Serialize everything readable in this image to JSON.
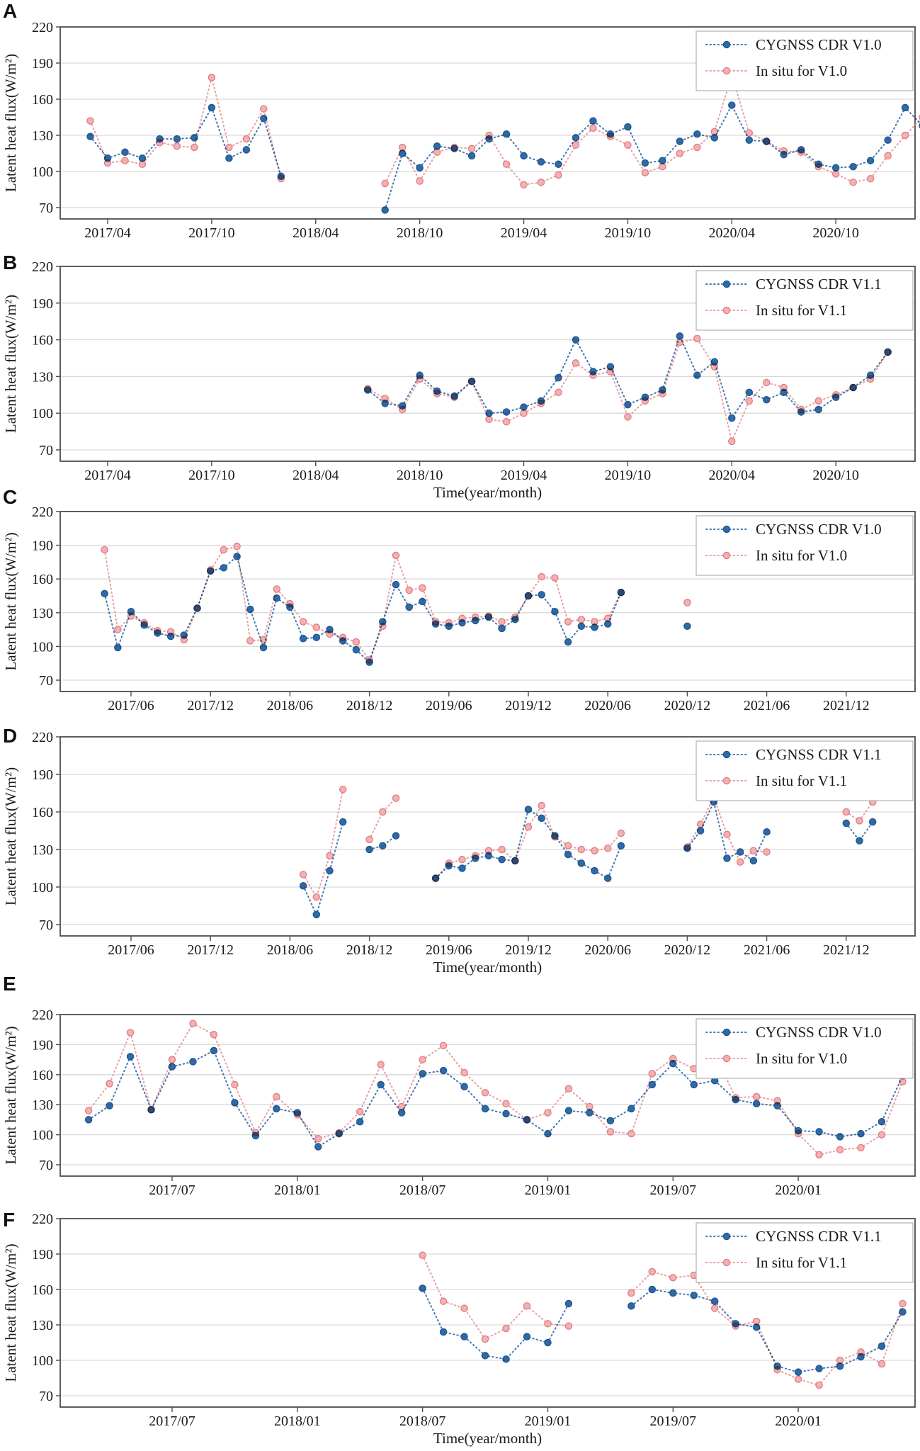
{
  "figure": {
    "ylabel": "Latent heat flux(W/m²)",
    "xlabel": "Time(year/month)",
    "colors": {
      "cygnss_marker": "#2d6aa8",
      "cygnss_edge": "#235689",
      "cygnss_line": "#4479b4",
      "insitu_marker": "#f4b0b2",
      "insitu_edge": "#e07d80",
      "insitu_line": "#ea9fa1",
      "grid": "#d9d9d9",
      "axis": "#4d4d4d"
    }
  },
  "chart_data": [
    {
      "panel": "A",
      "type": "line",
      "ylabel": "Latent heat flux(W/m²)",
      "xlabel": "",
      "ylim": [
        61,
        220
      ],
      "yticks": [
        220,
        190,
        160,
        130,
        100,
        70
      ],
      "xticks": [
        "2017/04",
        "2017/10",
        "2018/04",
        "2018/10",
        "2019/04",
        "2019/10",
        "2020/04",
        "2020/10"
      ],
      "legend_entries": [
        "CYGNSS CDR V1.0",
        "In situ for V1.0"
      ],
      "series": [
        {
          "name": "In situ for V1.0",
          "role": "insitu",
          "segments": [
            {
              "start": "2017/03",
              "values": [
                142,
                107,
                109,
                106,
                124,
                121,
                120,
                178,
                120,
                127,
                152,
                94
              ]
            },
            {
              "start": "2018/08",
              "values": [
                90,
                120,
                92,
                116,
                120,
                119,
                130,
                106,
                89,
                91,
                97,
                122,
                136,
                129,
                122,
                99,
                104,
                115,
                120,
                133,
                180,
                132,
                125,
                117,
                116,
                104,
                98,
                91,
                94,
                113,
                130,
                145
              ]
            }
          ]
        },
        {
          "name": "CYGNSS CDR V1.0",
          "role": "cygnss",
          "segments": [
            {
              "start": "2017/03",
              "values": [
                129,
                111,
                116,
                111,
                127,
                127,
                128,
                153,
                111,
                118,
                144,
                96
              ]
            },
            {
              "start": "2018/08",
              "values": [
                68,
                115,
                103,
                121,
                119,
                113,
                127,
                131,
                113,
                108,
                106,
                128,
                142,
                131,
                137,
                107,
                109,
                125,
                131,
                128,
                155,
                126,
                125,
                114,
                118,
                106,
                103,
                104,
                109,
                126,
                153,
                138
              ]
            }
          ]
        }
      ]
    },
    {
      "panel": "B",
      "type": "line",
      "ylabel": "Latent heat flux(W/m²)",
      "xlabel": "Time(year/month)",
      "ylim": [
        61,
        220
      ],
      "yticks": [
        220,
        190,
        160,
        130,
        100,
        70
      ],
      "xticks": [
        "2017/04",
        "2017/10",
        "2018/04",
        "2018/10",
        "2019/04",
        "2019/10",
        "2020/04",
        "2020/10"
      ],
      "legend_entries": [
        "CYGNSS CDR V1.1",
        "In situ for V1.1"
      ],
      "series": [
        {
          "name": "In situ for V1.1",
          "role": "insitu",
          "segments": [
            {
              "start": "2018/07",
              "values": [
                120,
                112,
                103,
                128,
                116,
                113,
                126,
                95,
                93,
                100,
                108,
                117,
                141,
                131,
                134,
                97,
                110,
                116,
                158,
                161,
                138,
                77,
                110,
                125,
                121,
                103,
                110,
                115,
                121,
                128,
                150
              ]
            }
          ]
        },
        {
          "name": "CYGNSS CDR V1.1",
          "role": "cygnss",
          "segments": [
            {
              "start": "2018/07",
              "values": [
                119,
                108,
                106,
                131,
                118,
                114,
                126,
                100,
                101,
                105,
                110,
                129,
                160,
                134,
                138,
                107,
                113,
                119,
                163,
                131,
                142,
                96,
                117,
                111,
                117,
                101,
                103,
                113,
                121,
                131,
                150
              ]
            }
          ]
        }
      ]
    },
    {
      "panel": "C",
      "type": "line",
      "ylabel": "Latent heat flux(W/m²)",
      "xlabel": "",
      "ylim": [
        61,
        220
      ],
      "yticks": [
        220,
        190,
        160,
        130,
        100,
        70
      ],
      "xticks": [
        "2017/06",
        "2017/12",
        "2018/06",
        "2018/12",
        "2019/06",
        "2019/12",
        "2020/06",
        "2020/12",
        "2021/06",
        "2021/12"
      ],
      "legend_entries": [
        "CYGNSS CDR V1.0",
        "In situ for V1.0"
      ],
      "series": [
        {
          "name": "In situ for V1.0",
          "role": "insitu",
          "segments": [
            {
              "start": "2017/04",
              "values": [
                186,
                115,
                127,
                121,
                114,
                113,
                106,
                134,
                168,
                186,
                189,
                105,
                106,
                151,
                138,
                122,
                117,
                111,
                108,
                104,
                88,
                118,
                181,
                150,
                152,
                122,
                121,
                125,
                126,
                127,
                122,
                126,
                145,
                162,
                161,
                122,
                124,
                122,
                125,
                148
              ]
            },
            {
              "start": "2020/12",
              "values": [
                139
              ]
            }
          ]
        },
        {
          "name": "CYGNSS CDR V1.0",
          "role": "cygnss",
          "segments": [
            {
              "start": "2017/04",
              "values": [
                147,
                99,
                131,
                119,
                112,
                109,
                110,
                134,
                167,
                170,
                180,
                133,
                99,
                143,
                135,
                107,
                108,
                115,
                105,
                97,
                86,
                122,
                155,
                135,
                140,
                120,
                118,
                121,
                123,
                126,
                116,
                124,
                145,
                146,
                131,
                104,
                118,
                117,
                120,
                148
              ]
            },
            {
              "start": "2020/12",
              "values": [
                118
              ]
            }
          ]
        }
      ]
    },
    {
      "panel": "D",
      "type": "line",
      "ylabel": "Latent heat flux(W/m²)",
      "xlabel": "Time(year/month)",
      "ylim": [
        61,
        220
      ],
      "yticks": [
        220,
        190,
        160,
        130,
        100,
        70
      ],
      "xticks": [
        "2017/06",
        "2017/12",
        "2018/06",
        "2018/12",
        "2019/06",
        "2019/12",
        "2020/06",
        "2020/12",
        "2021/06",
        "2021/12"
      ],
      "legend_entries": [
        "CYGNSS CDR V1.1",
        "In situ for V1.1"
      ],
      "series": [
        {
          "name": "In situ for V1.1",
          "role": "insitu",
          "segments": [
            {
              "start": "2018/07",
              "values": [
                110,
                92,
                125,
                178
              ]
            },
            {
              "start": "2018/12",
              "values": [
                138,
                160,
                171
              ]
            },
            {
              "start": "2019/05",
              "values": [
                107,
                119,
                122,
                125,
                129,
                130,
                121,
                148,
                165,
                140,
                133,
                130,
                129,
                131,
                143
              ]
            },
            {
              "start": "2020/12",
              "values": [
                132,
                150,
                172,
                142,
                120,
                129,
                128
              ]
            },
            {
              "start": "2021/12",
              "values": [
                160,
                153,
                168
              ]
            }
          ]
        },
        {
          "name": "CYGNSS CDR V1.1",
          "role": "cygnss",
          "segments": [
            {
              "start": "2018/07",
              "values": [
                101,
                78,
                113,
                152
              ]
            },
            {
              "start": "2018/12",
              "values": [
                130,
                133,
                141
              ]
            },
            {
              "start": "2019/05",
              "values": [
                107,
                117,
                115,
                123,
                125,
                122,
                121,
                162,
                155,
                141,
                126,
                119,
                113,
                107,
                133
              ]
            },
            {
              "start": "2020/12",
              "values": [
                131,
                145,
                168,
                123,
                128,
                121,
                144
              ]
            },
            {
              "start": "2021/12",
              "values": [
                151,
                137,
                152
              ]
            }
          ]
        }
      ]
    },
    {
      "panel": "E",
      "type": "line",
      "ylabel": "Latent heat flux(W/m²)",
      "xlabel": "",
      "ylim": [
        61,
        220
      ],
      "yticks": [
        220,
        190,
        160,
        130,
        100,
        70
      ],
      "xticks": [
        "2017/07",
        "2018/01",
        "2018/07",
        "2019/01",
        "2019/07",
        "2020/01"
      ],
      "legend_entries": [
        "CYGNSS CDR V1.0",
        "In situ for V1.0"
      ],
      "series": [
        {
          "name": "In situ for V1.0",
          "role": "insitu",
          "segments": [
            {
              "start": "2017/03",
              "values": [
                124,
                151,
                202,
                125,
                175,
                211,
                200,
                150,
                102,
                138,
                120,
                96,
                102,
                123,
                170,
                128,
                175,
                189,
                162,
                142,
                131,
                115,
                122,
                146,
                128,
                103,
                101,
                161,
                176,
                166,
                180,
                137,
                138,
                134,
                101,
                80,
                85,
                87,
                100,
                153
              ]
            }
          ]
        },
        {
          "name": "CYGNSS CDR V1.0",
          "role": "cygnss",
          "segments": [
            {
              "start": "2017/03",
              "values": [
                115,
                129,
                178,
                125,
                168,
                173,
                184,
                132,
                99,
                126,
                122,
                88,
                101,
                113,
                150,
                122,
                161,
                164,
                148,
                126,
                121,
                115,
                101,
                124,
                122,
                114,
                126,
                150,
                171,
                150,
                154,
                135,
                131,
                129,
                104,
                103,
                98,
                101,
                113,
                159
              ]
            }
          ]
        }
      ]
    },
    {
      "panel": "F",
      "type": "line",
      "ylabel": "Latent heat flux(W/m²)",
      "xlabel": "Time(year/month)",
      "ylim": [
        61,
        220
      ],
      "yticks": [
        220,
        190,
        160,
        130,
        100,
        70
      ],
      "xticks": [
        "2017/07",
        "2018/01",
        "2018/07",
        "2019/01",
        "2019/07",
        "2020/01"
      ],
      "legend_entries": [
        "CYGNSS CDR V1.1",
        "In situ for V1.1"
      ],
      "series": [
        {
          "name": "In situ for V1.1",
          "role": "insitu",
          "segments": [
            {
              "start": "2018/07",
              "values": [
                189,
                150,
                144,
                118,
                127,
                146,
                131,
                129
              ]
            },
            {
              "start": "2019/05",
              "values": [
                157,
                175,
                170,
                172,
                144,
                129,
                133,
                92,
                84,
                79,
                100,
                107,
                97,
                148
              ]
            }
          ]
        },
        {
          "name": "CYGNSS CDR V1.1",
          "role": "cygnss",
          "segments": [
            {
              "start": "2018/07",
              "values": [
                161,
                124,
                120,
                104,
                101,
                120,
                115,
                148
              ]
            },
            {
              "start": "2019/05",
              "values": [
                146,
                160,
                157,
                155,
                150,
                131,
                128,
                95,
                90,
                93,
                95,
                103,
                112,
                141
              ]
            }
          ]
        }
      ]
    }
  ]
}
